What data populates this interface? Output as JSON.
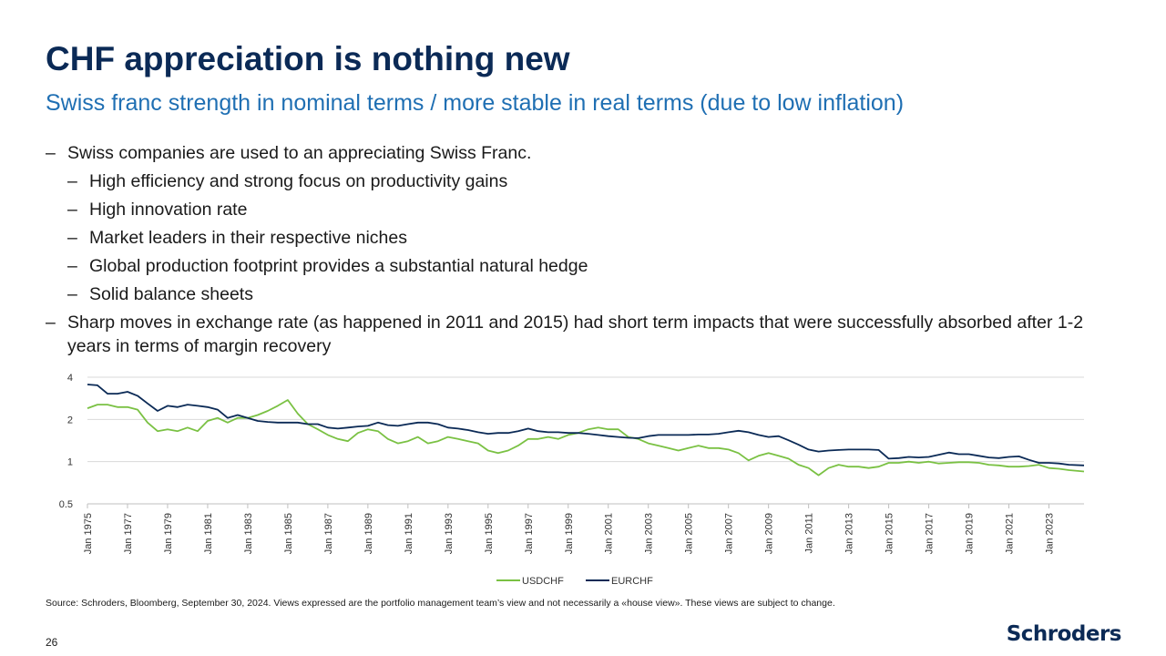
{
  "title": "CHF appreciation is nothing new",
  "subtitle": "Swiss franc strength in nominal terms / more stable in real terms (due to low inflation)",
  "bullets": [
    "Swiss companies are used to an appreciating Swiss Franc.",
    "High efficiency and strong focus on productivity gains",
    "High innovation rate",
    "Market leaders in their respective niches",
    "Global production footprint provides a substantial natural hedge",
    "Solid balance sheets",
    "Sharp moves in exchange rate (as happened in 2011 and 2015) had short term impacts that were successfully absorbed after 1-2 years in terms of margin recovery"
  ],
  "dash": "–",
  "source": "Source: Schroders, Bloomberg, September 30, 2024. Views expressed are the portfolio management team’s view and not necessarily a «house view». These views are subject to change.",
  "page_number": "26",
  "logo": "Schroders",
  "colors": {
    "usdchf": "#7ac143",
    "eurchf": "#0b2a56",
    "title": "#0b2a56",
    "subtitle": "#1f6fb3"
  },
  "chart_data": {
    "type": "line",
    "yscale": "log",
    "ylim": [
      0.5,
      4
    ],
    "yticks": [
      0.5,
      1,
      2,
      4
    ],
    "ytick_labels": [
      "0.5",
      "1",
      "2",
      "4"
    ],
    "xlim": [
      1975,
      2024.75
    ],
    "xtick_values": [
      1975,
      1977,
      1979,
      1981,
      1983,
      1985,
      1987,
      1989,
      1991,
      1993,
      1995,
      1997,
      1999,
      2001,
      2003,
      2005,
      2007,
      2009,
      2011,
      2013,
      2015,
      2017,
      2019,
      2021,
      2023
    ],
    "xtick_labels": [
      "Jan 1975",
      "Jan 1977",
      "Jan 1979",
      "Jan 1981",
      "Jan 1983",
      "Jan 1985",
      "Jan 1987",
      "Jan 1989",
      "Jan 1991",
      "Jan 1993",
      "Jan 1995",
      "Jan 1997",
      "Jan 1999",
      "Jan 2001",
      "Jan 2003",
      "Jan 2005",
      "Jan 2007",
      "Jan 2009",
      "Jan 2011",
      "Jan 2013",
      "Jan 2015",
      "Jan 2017",
      "Jan 2019",
      "Jan 2021",
      "Jan 2023"
    ],
    "legend": "bottom",
    "series": [
      {
        "name": "USDCHF",
        "x": [
          1975,
          1975.5,
          1976,
          1976.5,
          1977,
          1977.5,
          1978,
          1978.5,
          1979,
          1979.5,
          1980,
          1980.5,
          1981,
          1981.5,
          1982,
          1982.5,
          1983,
          1983.5,
          1984,
          1984.5,
          1985,
          1985.5,
          1986,
          1986.5,
          1987,
          1987.5,
          1988,
          1988.5,
          1989,
          1989.5,
          1990,
          1990.5,
          1991,
          1991.5,
          1992,
          1992.5,
          1993,
          1993.5,
          1994,
          1994.5,
          1995,
          1995.5,
          1996,
          1996.5,
          1997,
          1997.5,
          1998,
          1998.5,
          1999,
          1999.5,
          2000,
          2000.5,
          2001,
          2001.5,
          2002,
          2002.5,
          2003,
          2003.5,
          2004,
          2004.5,
          2005,
          2005.5,
          2006,
          2006.5,
          2007,
          2007.5,
          2008,
          2008.5,
          2009,
          2009.5,
          2010,
          2010.5,
          2011,
          2011.5,
          2012,
          2012.5,
          2013,
          2013.5,
          2014,
          2014.5,
          2015,
          2015.5,
          2016,
          2016.5,
          2017,
          2017.5,
          2018,
          2018.5,
          2019,
          2019.5,
          2020,
          2020.5,
          2021,
          2021.5,
          2022,
          2022.5,
          2023,
          2023.5,
          2024,
          2024.75
        ],
        "values": [
          2.4,
          2.55,
          2.55,
          2.45,
          2.45,
          2.35,
          1.9,
          1.65,
          1.7,
          1.65,
          1.75,
          1.65,
          1.95,
          2.05,
          1.9,
          2.05,
          2.05,
          2.15,
          2.3,
          2.5,
          2.75,
          2.2,
          1.85,
          1.7,
          1.55,
          1.45,
          1.4,
          1.6,
          1.7,
          1.65,
          1.45,
          1.35,
          1.4,
          1.5,
          1.35,
          1.4,
          1.5,
          1.45,
          1.4,
          1.35,
          1.2,
          1.15,
          1.2,
          1.3,
          1.45,
          1.45,
          1.5,
          1.45,
          1.55,
          1.6,
          1.7,
          1.75,
          1.7,
          1.7,
          1.5,
          1.45,
          1.35,
          1.3,
          1.25,
          1.2,
          1.25,
          1.3,
          1.25,
          1.25,
          1.22,
          1.15,
          1.02,
          1.1,
          1.15,
          1.1,
          1.05,
          0.95,
          0.9,
          0.8,
          0.9,
          0.95,
          0.92,
          0.92,
          0.9,
          0.92,
          0.98,
          0.98,
          1.0,
          0.98,
          1.0,
          0.97,
          0.98,
          0.99,
          0.99,
          0.98,
          0.95,
          0.94,
          0.92,
          0.92,
          0.93,
          0.95,
          0.9,
          0.89,
          0.87,
          0.85
        ]
      },
      {
        "name": "EURCHF",
        "x": [
          1975,
          1975.5,
          1976,
          1976.5,
          1977,
          1977.5,
          1978,
          1978.5,
          1979,
          1979.5,
          1980,
          1980.5,
          1981,
          1981.5,
          1982,
          1982.5,
          1983,
          1983.5,
          1984,
          1984.5,
          1985,
          1985.5,
          1986,
          1986.5,
          1987,
          1987.5,
          1988,
          1988.5,
          1989,
          1989.5,
          1990,
          1990.5,
          1991,
          1991.5,
          1992,
          1992.5,
          1993,
          1993.5,
          1994,
          1994.5,
          1995,
          1995.5,
          1996,
          1996.5,
          1997,
          1997.5,
          1998,
          1998.5,
          1999,
          1999.5,
          2000,
          2000.5,
          2001,
          2001.5,
          2002,
          2002.5,
          2003,
          2003.5,
          2004,
          2004.5,
          2005,
          2005.5,
          2006,
          2006.5,
          2007,
          2007.5,
          2008,
          2008.5,
          2009,
          2009.5,
          2010,
          2010.5,
          2011,
          2011.5,
          2012,
          2012.5,
          2013,
          2013.5,
          2014,
          2014.5,
          2015,
          2015.5,
          2016,
          2016.5,
          2017,
          2017.5,
          2018,
          2018.5,
          2019,
          2019.5,
          2020,
          2020.5,
          2021,
          2021.5,
          2022,
          2022.5,
          2023,
          2023.5,
          2024,
          2024.75
        ],
        "values": [
          3.55,
          3.5,
          3.05,
          3.05,
          3.15,
          2.95,
          2.6,
          2.3,
          2.5,
          2.45,
          2.55,
          2.5,
          2.45,
          2.35,
          2.05,
          2.15,
          2.05,
          1.95,
          1.92,
          1.9,
          1.9,
          1.9,
          1.85,
          1.85,
          1.75,
          1.72,
          1.75,
          1.78,
          1.8,
          1.9,
          1.82,
          1.8,
          1.85,
          1.9,
          1.9,
          1.85,
          1.75,
          1.72,
          1.68,
          1.62,
          1.58,
          1.6,
          1.6,
          1.65,
          1.72,
          1.65,
          1.62,
          1.62,
          1.6,
          1.6,
          1.58,
          1.55,
          1.52,
          1.5,
          1.48,
          1.47,
          1.52,
          1.55,
          1.55,
          1.55,
          1.55,
          1.56,
          1.56,
          1.58,
          1.62,
          1.66,
          1.62,
          1.55,
          1.5,
          1.52,
          1.42,
          1.32,
          1.22,
          1.18,
          1.2,
          1.21,
          1.22,
          1.22,
          1.22,
          1.21,
          1.05,
          1.06,
          1.08,
          1.07,
          1.08,
          1.12,
          1.16,
          1.13,
          1.13,
          1.1,
          1.07,
          1.06,
          1.08,
          1.09,
          1.03,
          0.98,
          0.98,
          0.97,
          0.95,
          0.94
        ]
      }
    ]
  }
}
